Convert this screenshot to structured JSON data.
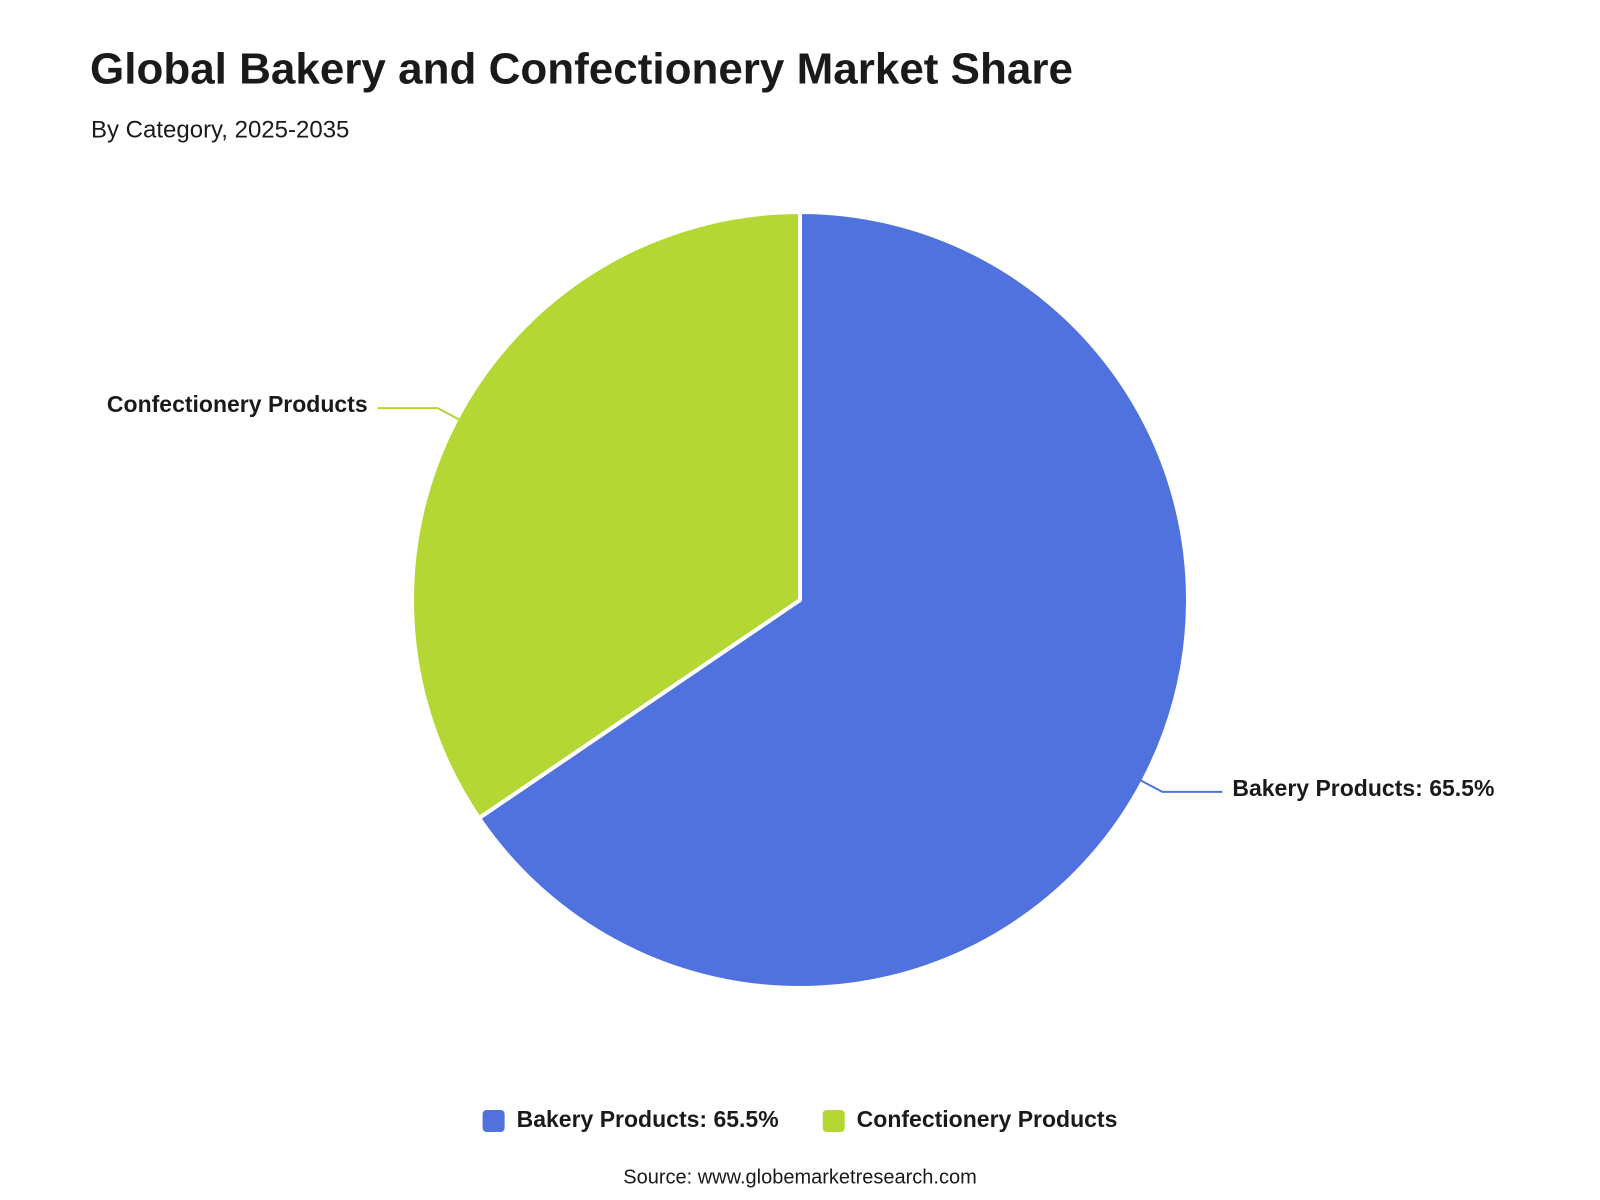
{
  "chart_data": {
    "type": "pie",
    "title": "Global Bakery and Confectionery Market Share",
    "subtitle": "By Category, 2025-2035",
    "categories": [
      "Bakery Products: 65.5%",
      "Confectionery Products"
    ],
    "values": [
      65.5,
      34.5
    ],
    "colors": [
      "#5072de",
      "#b5d733"
    ],
    "legend": "bottom",
    "source": "Source: www.globemarketresearch.com"
  }
}
